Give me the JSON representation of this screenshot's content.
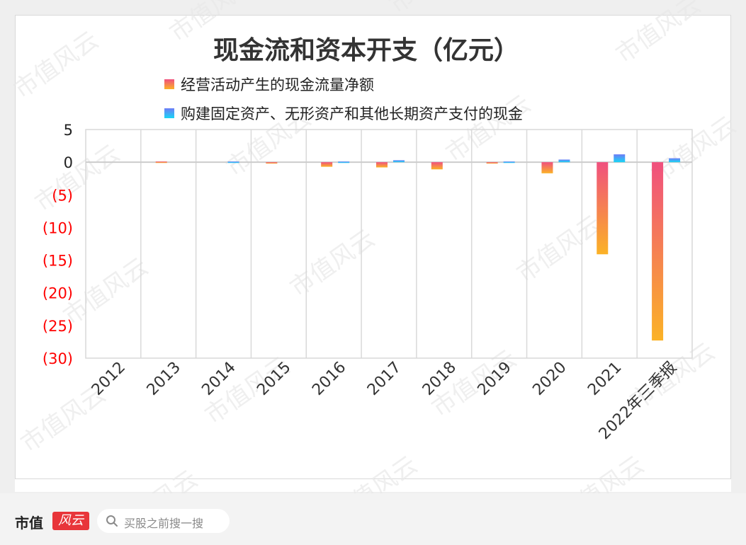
{
  "chart_data": {
    "type": "bar",
    "title": "现金流和资本开支（亿元）",
    "categories": [
      "2012",
      "2013",
      "2014",
      "2015",
      "2016",
      "2017",
      "2018",
      "2019",
      "2020",
      "2021",
      "2022年三季报"
    ],
    "series": [
      {
        "name": "经营活动产生的现金流量净额",
        "values": [
          0,
          0.1,
          0,
          -0.2,
          -0.7,
          -0.8,
          -1.1,
          -0.2,
          -1.7,
          -14.1,
          -27.3
        ]
      },
      {
        "name": "购建固定资产、无形资产和其他长期资产支付的现金",
        "values": [
          0,
          0,
          0.1,
          0,
          0.1,
          0.3,
          0,
          0.1,
          0.4,
          1.2,
          0.6
        ]
      }
    ],
    "yticks": [
      {
        "value": 5,
        "label": "5"
      },
      {
        "value": 0,
        "label": "0"
      },
      {
        "value": -5,
        "label": "(5)"
      },
      {
        "value": -10,
        "label": "(10)"
      },
      {
        "value": -15,
        "label": "(15)"
      },
      {
        "value": -20,
        "label": "(20)"
      },
      {
        "value": -25,
        "label": "(25)"
      },
      {
        "value": -30,
        "label": "(30)"
      }
    ],
    "ylim": [
      -30,
      5
    ],
    "grid": true,
    "legend_position": "top",
    "colors": {
      "series1_top": "#f0507e",
      "series1_bottom": "#fbb226",
      "series2_top": "#6d7cf7",
      "series2_bottom": "#18d6f5",
      "negative_label": "#ff0000",
      "positive_label": "#222222",
      "grid": "#d9d9d9"
    }
  },
  "watermark": "市值风云",
  "footer": {
    "brand": "市值",
    "logo_text": "风云",
    "search_placeholder": "买股之前搜一搜"
  }
}
